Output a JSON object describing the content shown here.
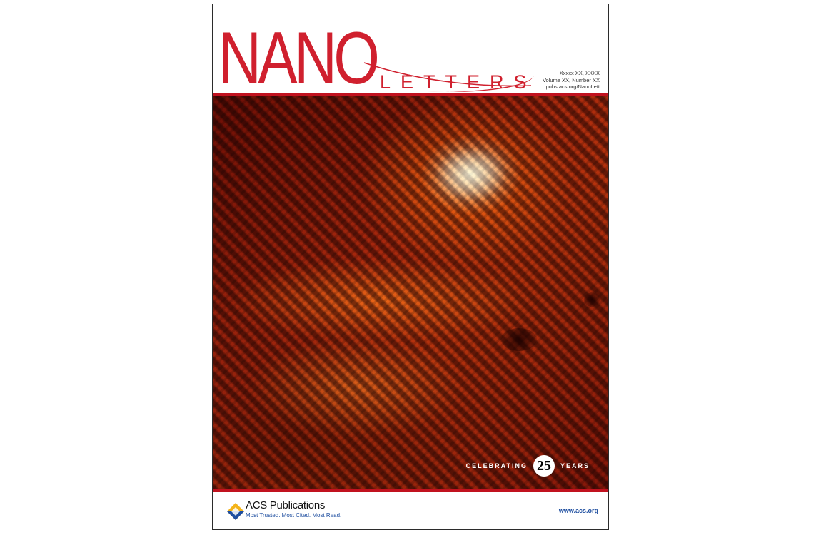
{
  "masthead": {
    "title_nano": "NANO",
    "title_letters": "LETTERS",
    "issue_lines": [
      "Xxxxx XX, XXXX",
      "Volume XX, Number XX",
      "pubs.acs.org/NanoLett"
    ],
    "brand_color": "#d0202e"
  },
  "cover_art": {
    "description_icon": "stm-lattice-image"
  },
  "badge": {
    "left_text": "CELEBRATING",
    "number": "25",
    "right_text": "YEARS"
  },
  "footer": {
    "publisher": "ACS Publications",
    "tagline": "Most Trusted. Most Cited. Most Read.",
    "url": "www.acs.org",
    "logo_icon": "acs-diamond-logo-icon",
    "link_color": "#1f4fa0"
  }
}
